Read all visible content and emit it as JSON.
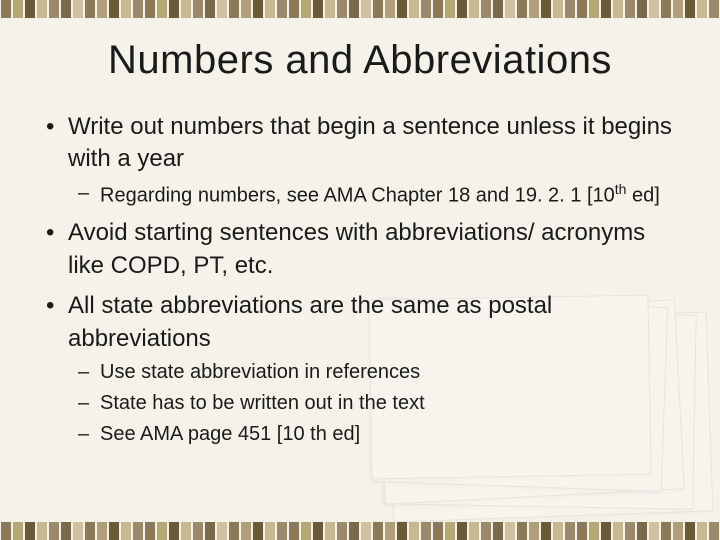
{
  "slide": {
    "title": "Numbers and Abbreviations",
    "title_fontsize": 40,
    "body_fontsize_l1": 24,
    "body_fontsize_l2": 20,
    "text_color": "#1a1a1a",
    "background_color": "#f5f2ea",
    "bullets": [
      {
        "level": 1,
        "text": "Write out numbers that begin a sentence unless it begins with a year"
      },
      {
        "level": 2,
        "text_parts": [
          "Regarding numbers, see AMA Chapter 18 and 19. 2. 1 [10",
          "th",
          " ed]"
        ],
        "has_superscript": true
      },
      {
        "level": 1,
        "text": "Avoid starting sentences with abbreviations/ acronyms like COPD, PT, etc."
      },
      {
        "level": 1,
        "text": "All state abbreviations are the same as postal abbreviations"
      },
      {
        "level": 2,
        "text": "Use state abbreviation in references"
      },
      {
        "level": 2,
        "text": "State has to be written out in the text"
      },
      {
        "level": 2,
        "text": "See AMA page 451 [10 th ed]"
      }
    ]
  },
  "border": {
    "stripe_colors": [
      "#8a7a5a",
      "#b8a878",
      "#6a5a3a",
      "#c8b890",
      "#9a8a6a",
      "#7a6a4a",
      "#d0c0a0",
      "#8a7a5a",
      "#b0a078",
      "#6a5a3a",
      "#c8b890",
      "#9a8a6a",
      "#8a7a5a",
      "#b8a878",
      "#6a5a3a",
      "#c8b890",
      "#9a8a6a",
      "#7a6a4a",
      "#d0c0a0",
      "#8a7a5a",
      "#b0a078",
      "#6a5a3a",
      "#c8b890",
      "#9a8a6a",
      "#8a7a5a",
      "#b8a878",
      "#6a5a3a",
      "#c8b890",
      "#9a8a6a",
      "#7a6a4a",
      "#d0c0a0",
      "#8a7a5a",
      "#b0a078",
      "#6a5a3a",
      "#c8b890",
      "#9a8a6a",
      "#8a7a5a",
      "#b8a878",
      "#6a5a3a",
      "#c8b890",
      "#9a8a6a",
      "#7a6a4a",
      "#d0c0a0",
      "#8a7a5a",
      "#b0a078",
      "#6a5a3a",
      "#c8b890",
      "#9a8a6a",
      "#8a7a5a",
      "#b8a878",
      "#6a5a3a",
      "#c8b890",
      "#9a8a6a",
      "#7a6a4a",
      "#d0c0a0",
      "#8a7a5a",
      "#b0a078",
      "#6a5a3a",
      "#c8b890",
      "#9a8a6a"
    ],
    "height": 18
  },
  "decoration": {
    "type": "paper-stack",
    "opacity": 0.18
  }
}
